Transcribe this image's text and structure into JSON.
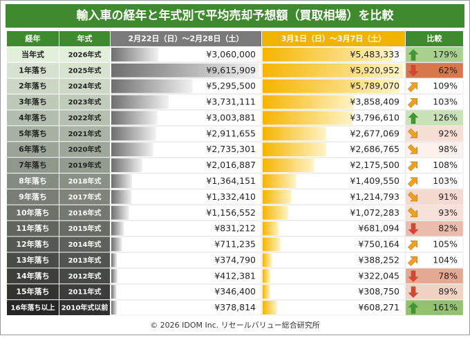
{
  "header": {
    "title": "輸入車の経年と年式別で平均売却予想額（買取相場）を比較"
  },
  "table": {
    "columns": [
      "経年",
      "年式",
      "2月22日（日）～2月28日（土）",
      "3月1日（日）～3月7日（土）",
      "比較"
    ],
    "rows": [
      {
        "age": "当年式",
        "year": "2026年式",
        "week1": {
          "value": 3060000,
          "label": "¥3,060,000"
        },
        "week2": {
          "value": 5483333,
          "label": "¥5,483,333"
        },
        "change": {
          "value": 179,
          "label": "179%"
        },
        "arrow": "up",
        "color": "#a9d18e"
      },
      {
        "age": "1年落ち",
        "year": "2025年式",
        "week1": {
          "value": 9615909,
          "label": "¥9,615,909"
        },
        "week2": {
          "value": 5920952,
          "label": "¥5,920,952"
        },
        "change": {
          "value": 62,
          "label": "62%"
        },
        "arrow": "down",
        "color": "#d5794c"
      },
      {
        "age": "2年落ち",
        "year": "2024年式",
        "week1": {
          "value": 5295500,
          "label": "¥5,295,500"
        },
        "week2": {
          "value": 5789070,
          "label": "¥5,789,070"
        },
        "change": {
          "value": 109,
          "label": "109%"
        },
        "arrow": "up-right",
        "color": "#ffffff"
      },
      {
        "age": "3年落ち",
        "year": "2023年式",
        "week1": {
          "value": 3731111,
          "label": "¥3,731,111"
        },
        "week2": {
          "value": 3858409,
          "label": "¥3,858,409"
        },
        "change": {
          "value": 103,
          "label": "103%"
        },
        "arrow": "up-right",
        "color": "#ffffff"
      },
      {
        "age": "4年落ち",
        "year": "2022年式",
        "week1": {
          "value": 3003881,
          "label": "¥3,003,881"
        },
        "week2": {
          "value": 3796610,
          "label": "¥3,796,610"
        },
        "change": {
          "value": 126,
          "label": "126%"
        },
        "arrow": "up",
        "color": "#c9e2b8"
      },
      {
        "age": "5年落ち",
        "year": "2021年式",
        "week1": {
          "value": 2911655,
          "label": "¥2,911,655"
        },
        "week2": {
          "value": 2677069,
          "label": "¥2,677,069"
        },
        "change": {
          "value": 92,
          "label": "92%"
        },
        "arrow": "down-right",
        "color": "#f8dfd6"
      },
      {
        "age": "6年落ち",
        "year": "2020年式",
        "week1": {
          "value": 2735301,
          "label": "¥2,735,301"
        },
        "week2": {
          "value": 2686765,
          "label": "¥2,686,765"
        },
        "change": {
          "value": 98,
          "label": "98%"
        },
        "arrow": "down-right",
        "color": "#fcf1ed"
      },
      {
        "age": "7年落ち",
        "year": "2019年式",
        "week1": {
          "value": 2016887,
          "label": "¥2,016,887"
        },
        "week2": {
          "value": 2175500,
          "label": "¥2,175,500"
        },
        "change": {
          "value": 108,
          "label": "108%"
        },
        "arrow": "up-right",
        "color": "#ffffff"
      },
      {
        "age": "8年落ち",
        "year": "2018年式",
        "week1": {
          "value": 1364151,
          "label": "¥1,364,151"
        },
        "week2": {
          "value": 1409550,
          "label": "¥1,409,550"
        },
        "change": {
          "value": 103,
          "label": "103%"
        },
        "arrow": "up-right",
        "color": "#ffffff"
      },
      {
        "age": "9年落ち",
        "year": "2017年式",
        "week1": {
          "value": 1332410,
          "label": "¥1,332,410"
        },
        "week2": {
          "value": 1214793,
          "label": "¥1,214,793"
        },
        "change": {
          "value": 91,
          "label": "91%"
        },
        "arrow": "down-right",
        "color": "#f6dacf"
      },
      {
        "age": "10年落ち",
        "year": "2016年式",
        "week1": {
          "value": 1156552,
          "label": "¥1,156,552"
        },
        "week2": {
          "value": 1072283,
          "label": "¥1,072,283"
        },
        "change": {
          "value": 93,
          "label": "93%"
        },
        "arrow": "down-right",
        "color": "#f8e1d9"
      },
      {
        "age": "11年落ち",
        "year": "2015年式",
        "week1": {
          "value": 831212,
          "label": "¥831,212"
        },
        "week2": {
          "value": 681094,
          "label": "¥681,094"
        },
        "change": {
          "value": 82,
          "label": "82%"
        },
        "arrow": "down",
        "color": "#ebbcac"
      },
      {
        "age": "12年落ち",
        "year": "2014年式",
        "week1": {
          "value": 711235,
          "label": "¥711,235"
        },
        "week2": {
          "value": 750164,
          "label": "¥750,164"
        },
        "change": {
          "value": 105,
          "label": "105%"
        },
        "arrow": "up-right",
        "color": "#ffffff"
      },
      {
        "age": "13年落ち",
        "year": "2013年式",
        "week1": {
          "value": 374790,
          "label": "¥374,790"
        },
        "week2": {
          "value": 388252,
          "label": "¥388,252"
        },
        "change": {
          "value": 104,
          "label": "104%"
        },
        "arrow": "up-right",
        "color": "#ffffff"
      },
      {
        "age": "14年落ち",
        "year": "2012年式",
        "week1": {
          "value": 412381,
          "label": "¥412,381"
        },
        "week2": {
          "value": 322045,
          "label": "¥322,045"
        },
        "change": {
          "value": 78,
          "label": "78%"
        },
        "arrow": "down",
        "color": "#e4a893"
      },
      {
        "age": "15年落ち",
        "year": "2011年式",
        "week1": {
          "value": 346400,
          "label": "¥346,400"
        },
        "week2": {
          "value": 308750,
          "label": "¥308,750"
        },
        "change": {
          "value": 89,
          "label": "89%"
        },
        "arrow": "down",
        "color": "#f3d2c6"
      },
      {
        "age": "16年落ち以上",
        "year": "2010年式以前",
        "week1": {
          "value": 378814,
          "label": "¥378,814"
        },
        "week2": {
          "value": 608271,
          "label": "¥608,271"
        },
        "change": {
          "value": 161,
          "label": "161%"
        },
        "arrow": "up",
        "color": "#92c26e"
      }
    ]
  },
  "footer": {
    "text": "© 2026 IDOM Inc. リセールバリュー総合研究所"
  }
}
